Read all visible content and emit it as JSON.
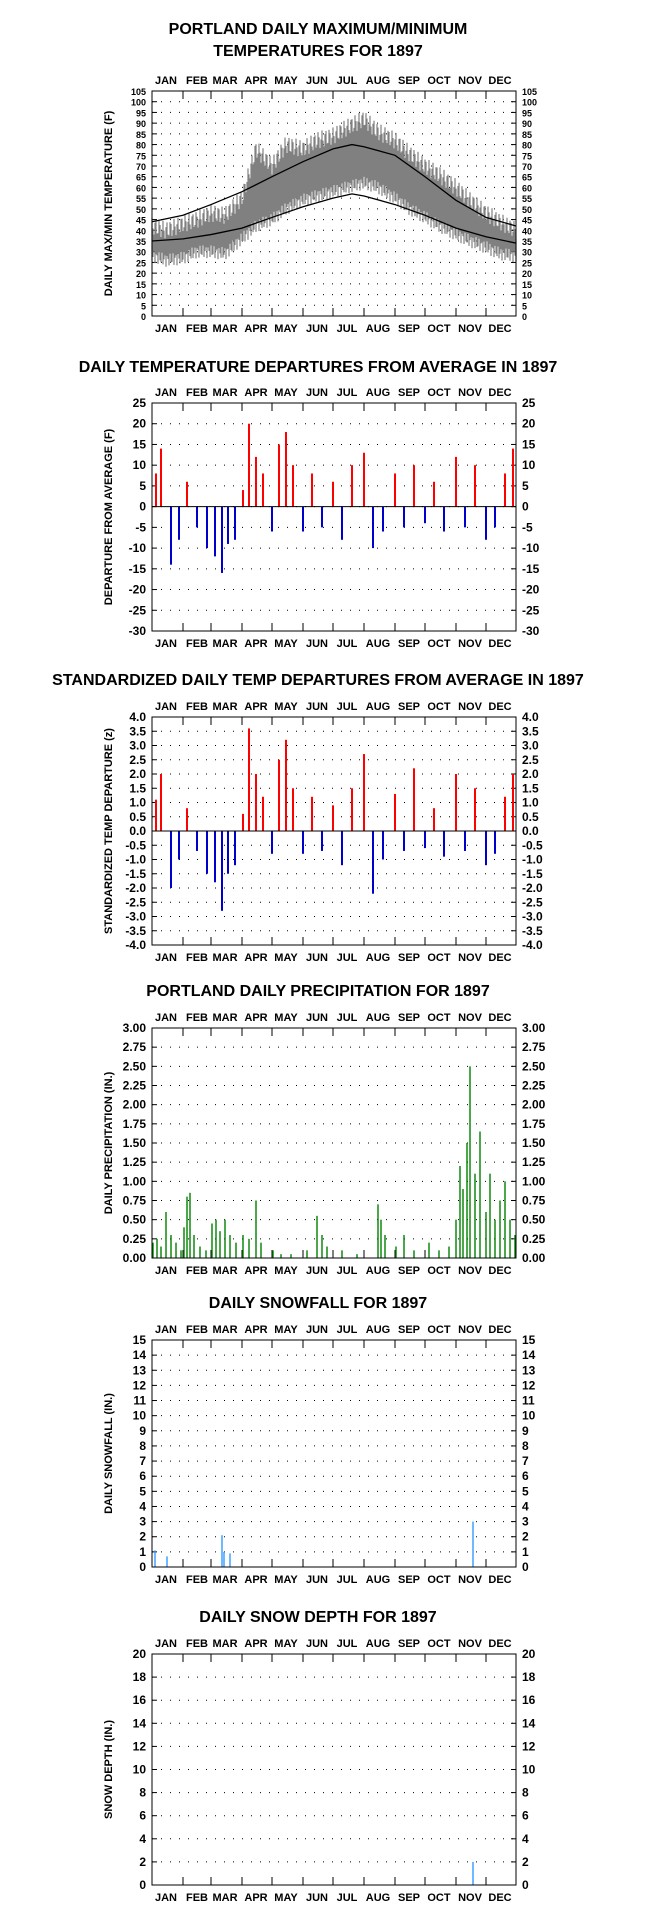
{
  "months": [
    "JAN",
    "FEB",
    "MAR",
    "APR",
    "MAY",
    "JUN",
    "JUL",
    "AUG",
    "SEP",
    "OCT",
    "NOV",
    "DEC"
  ],
  "colors": {
    "temp_observed": "#808080",
    "temp_normal": "#000000",
    "positive": "#ff0000",
    "negative": "#0000cc",
    "precip": "#008000",
    "snow": "#3399ff"
  },
  "chart_data": [
    {
      "id": "temp",
      "type": "line",
      "title": [
        "PORTLAND DAILY MAXIMUM/MINIMUM",
        "TEMPERATURES FOR 1897"
      ],
      "ylabel": "DAILY MAX/MIN TEMPERATURE (F)",
      "ylim": [
        0,
        105
      ],
      "yticks": [
        0,
        5,
        10,
        15,
        20,
        25,
        30,
        35,
        40,
        45,
        50,
        55,
        60,
        65,
        70,
        75,
        80,
        85,
        90,
        95,
        100,
        105
      ],
      "grid": "dotted",
      "series": [
        {
          "name": "",
          "role": "observed max/min (daily)",
          "x": [
            "Jan 1",
            "Jan 15",
            "Feb 1",
            "Feb 15",
            "Mar 1",
            "Mar 15",
            "Apr 1",
            "Apr 15",
            "May 1",
            "May 15",
            "Jun 1",
            "Jun 15",
            "Jul 1",
            "Jul 15",
            "Aug 1",
            "Aug 15",
            "Sep 1",
            "Sep 15",
            "Oct 1",
            "Oct 15",
            "Nov 1",
            "Nov 15",
            "Dec 1",
            "Dec 15",
            "Dec 31"
          ],
          "max": [
            42,
            40,
            43,
            45,
            48,
            47,
            55,
            78,
            70,
            80,
            78,
            82,
            84,
            88,
            92,
            86,
            82,
            76,
            70,
            66,
            60,
            54,
            48,
            44,
            40
          ],
          "min": [
            28,
            26,
            27,
            30,
            30,
            29,
            36,
            42,
            45,
            50,
            54,
            56,
            58,
            60,
            62,
            60,
            55,
            50,
            46,
            42,
            38,
            35,
            32,
            29,
            28
          ]
        },
        {
          "name": "",
          "role": "normal max",
          "x": [
            "Jan 1",
            "Feb 1",
            "Mar 1",
            "Apr 1",
            "May 1",
            "Jun 1",
            "Jul 1",
            "Jul 20",
            "Aug 1",
            "Sep 1",
            "Oct 1",
            "Nov 1",
            "Dec 1",
            "Dec 31"
          ],
          "values": [
            44,
            47,
            52,
            58,
            65,
            72,
            78,
            80,
            79,
            75,
            65,
            54,
            46,
            42
          ]
        },
        {
          "name": "",
          "role": "normal min",
          "x": [
            "Jan 1",
            "Feb 1",
            "Mar 1",
            "Apr 1",
            "May 1",
            "Jun 1",
            "Jul 1",
            "Jul 20",
            "Aug 1",
            "Sep 1",
            "Oct 1",
            "Nov 1",
            "Dec 1",
            "Dec 31"
          ],
          "values": [
            35,
            36,
            38,
            41,
            46,
            51,
            55,
            57,
            56,
            52,
            47,
            41,
            37,
            34
          ]
        }
      ]
    },
    {
      "id": "dep",
      "type": "bar",
      "title": [
        "DAILY TEMPERATURE DEPARTURES FROM AVERAGE IN 1897"
      ],
      "ylabel": "DEPARTURE FROM AVERAGE (F)",
      "ylim": [
        -30,
        25
      ],
      "yticks": [
        -30,
        -25,
        -20,
        -15,
        -10,
        -5,
        0,
        5,
        10,
        15,
        20,
        25
      ],
      "grid": "dotted",
      "series": [
        {
          "name": "",
          "x": [
            "Jan 5",
            "Jan 10",
            "Jan 20",
            "Jan 28",
            "Feb 5",
            "Feb 15",
            "Feb 25",
            "Mar 5",
            "Mar 12",
            "Mar 18",
            "Mar 25",
            "Apr 2",
            "Apr 8",
            "Apr 15",
            "Apr 22",
            "May 1",
            "May 8",
            "May 15",
            "May 22",
            "Jun 1",
            "Jun 10",
            "Jun 20",
            "Jul 1",
            "Jul 10",
            "Jul 20",
            "Aug 1",
            "Aug 10",
            "Aug 20",
            "Sep 1",
            "Sep 10",
            "Sep 20",
            "Oct 1",
            "Oct 10",
            "Oct 20",
            "Nov 1",
            "Nov 10",
            "Nov 20",
            "Dec 1",
            "Dec 10",
            "Dec 20",
            "Dec 28"
          ],
          "values": [
            8,
            14,
            -14,
            -8,
            6,
            -5,
            -10,
            -12,
            -16,
            -9,
            -8,
            4,
            20,
            12,
            8,
            -6,
            15,
            18,
            10,
            -6,
            8,
            -5,
            6,
            -8,
            10,
            13,
            -10,
            -6,
            8,
            -5,
            10,
            -4,
            6,
            -6,
            12,
            -5,
            10,
            -8,
            -5,
            8,
            14
          ]
        }
      ]
    },
    {
      "id": "std",
      "type": "bar",
      "title": [
        "STANDARDIZED DAILY TEMP DEPARTURES FROM AVERAGE IN 1897"
      ],
      "ylabel": "STANDARDIZED TEMP DEPARTURE (z)",
      "ylim": [
        -4.0,
        4.0
      ],
      "yticks": [
        -4.0,
        -3.5,
        -3.0,
        -2.5,
        -2.0,
        -1.5,
        -1.0,
        -0.5,
        0.0,
        0.5,
        1.0,
        1.5,
        2.0,
        2.5,
        3.0,
        3.5,
        4.0
      ],
      "decimals": 1,
      "grid": "dotted",
      "series": [
        {
          "name": "",
          "x": [
            "Jan 5",
            "Jan 10",
            "Jan 20",
            "Jan 28",
            "Feb 5",
            "Feb 15",
            "Feb 25",
            "Mar 5",
            "Mar 12",
            "Mar 18",
            "Mar 25",
            "Apr 2",
            "Apr 8",
            "Apr 15",
            "Apr 22",
            "May 1",
            "May 8",
            "May 15",
            "May 22",
            "Jun 1",
            "Jun 10",
            "Jun 20",
            "Jul 1",
            "Jul 10",
            "Jul 20",
            "Aug 1",
            "Aug 10",
            "Aug 20",
            "Sep 1",
            "Sep 10",
            "Sep 20",
            "Oct 1",
            "Oct 10",
            "Oct 20",
            "Nov 1",
            "Nov 10",
            "Nov 20",
            "Dec 1",
            "Dec 10",
            "Dec 20",
            "Dec 28"
          ],
          "values": [
            1.1,
            2.0,
            -2.0,
            -1.0,
            0.8,
            -0.7,
            -1.5,
            -1.8,
            -2.8,
            -1.5,
            -1.2,
            0.6,
            3.6,
            2.0,
            1.2,
            -0.8,
            2.5,
            3.2,
            1.5,
            -0.8,
            1.2,
            -0.7,
            0.9,
            -1.2,
            1.5,
            2.7,
            -2.2,
            -1.0,
            1.3,
            -0.7,
            2.2,
            -0.6,
            0.8,
            -0.9,
            2.0,
            -0.7,
            1.5,
            -1.2,
            -0.8,
            1.2,
            2.0
          ]
        }
      ]
    },
    {
      "id": "precip",
      "type": "bar",
      "title": [
        "PORTLAND DAILY PRECIPITATION FOR 1897"
      ],
      "ylabel": "DAILY PRECIPITATION (IN.)",
      "ylim": [
        0,
        3.0
      ],
      "yticks": [
        0.0,
        0.25,
        0.5,
        0.75,
        1.0,
        1.25,
        1.5,
        1.75,
        2.0,
        2.25,
        2.5,
        2.75,
        3.0
      ],
      "decimals": 2,
      "grid": "dotted",
      "series": [
        {
          "name": "",
          "x": [
            "Jan 2",
            "Jan 6",
            "Jan 10",
            "Jan 15",
            "Jan 20",
            "Jan 25",
            "Jan 30",
            "Feb 2",
            "Feb 5",
            "Feb 8",
            "Feb 12",
            "Feb 18",
            "Feb 24",
            "Mar 2",
            "Mar 6",
            "Mar 10",
            "Mar 15",
            "Mar 20",
            "Mar 26",
            "Apr 2",
            "Apr 8",
            "Apr 15",
            "Apr 20",
            "May 2",
            "May 10",
            "May 20",
            "Jun 5",
            "Jun 15",
            "Jun 20",
            "Jun 25",
            "Jul 10",
            "Jul 25",
            "Aug 15",
            "Aug 18",
            "Aug 22",
            "Sep 2",
            "Sep 10",
            "Sep 20",
            "Oct 5",
            "Oct 15",
            "Oct 25",
            "Nov 1",
            "Nov 5",
            "Nov 8",
            "Nov 12",
            "Nov 15",
            "Nov 20",
            "Nov 25",
            "Dec 1",
            "Dec 5",
            "Dec 10",
            "Dec 15",
            "Dec 20",
            "Dec 25",
            "Dec 30"
          ],
          "values": [
            0.2,
            0.25,
            0.15,
            0.6,
            0.3,
            0.2,
            0.1,
            0.4,
            0.8,
            0.85,
            0.3,
            0.15,
            0.1,
            0.45,
            0.5,
            0.35,
            0.5,
            0.3,
            0.2,
            0.3,
            0.25,
            0.75,
            0.2,
            0.1,
            0.05,
            0.05,
            0.1,
            0.55,
            0.3,
            0.15,
            0.1,
            0.05,
            0.7,
            0.5,
            0.3,
            0.15,
            0.3,
            0.1,
            0.2,
            0.1,
            0.15,
            0.5,
            1.2,
            0.9,
            1.5,
            2.5,
            1.1,
            1.65,
            0.6,
            1.1,
            0.5,
            0.75,
            1.0,
            0.5,
            0.3
          ]
        }
      ]
    },
    {
      "id": "snow",
      "type": "bar",
      "title": [
        "DAILY SNOWFALL FOR 1897"
      ],
      "ylabel": "DAILY SNOWFALL (IN.)",
      "ylim": [
        0,
        15
      ],
      "yticks": [
        0,
        1,
        2,
        3,
        4,
        5,
        6,
        7,
        8,
        9,
        10,
        11,
        12,
        13,
        14,
        15
      ],
      "grid": "dotted",
      "series": [
        {
          "name": "",
          "x": [
            "Jan 4",
            "Jan 16",
            "Mar 12",
            "Mar 14",
            "Mar 20",
            "Nov 18"
          ],
          "values": [
            1.1,
            0.7,
            2.1,
            1.0,
            0.9,
            3.0
          ]
        }
      ]
    },
    {
      "id": "depth",
      "type": "bar",
      "title": [
        "DAILY SNOW DEPTH FOR 1897"
      ],
      "ylabel": "SNOW DEPTH (IN.)",
      "ylim": [
        0,
        20
      ],
      "yticks": [
        0,
        2,
        4,
        6,
        8,
        10,
        12,
        14,
        16,
        18,
        20
      ],
      "grid": "dotted",
      "series": [
        {
          "name": "",
          "x": [
            "Nov 18"
          ],
          "values": [
            2
          ]
        }
      ]
    }
  ]
}
